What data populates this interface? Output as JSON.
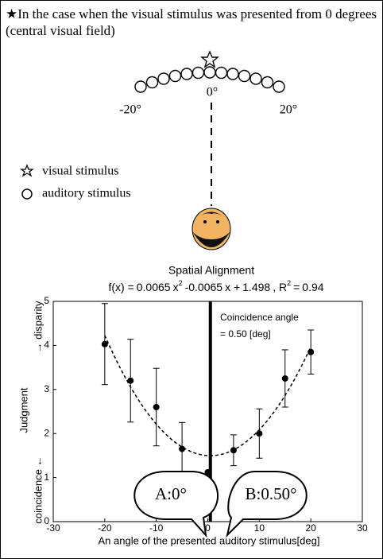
{
  "heading": "★In the case when the visual stimulus was presented from 0 degrees (central visual field)",
  "arc_labels": [
    "-20°",
    "0°",
    "20°"
  ],
  "legend_items": [
    "visual stimulus",
    "auditory stimulus"
  ],
  "chart_data": {
    "type": "scatter",
    "title": "Spatial Alignment",
    "formula": {
      "prefix": "f(x) =",
      "a": 0.0065,
      "a_var": "x",
      "a_exp": "2",
      "b": -0.0065,
      "b_var": "x +",
      "c": 1.498,
      "r_label": ", R",
      "r_exp": "2",
      "r_eq": "=",
      "r2": 0.94
    },
    "x": [
      -20,
      -15,
      -10,
      -5,
      0,
      5,
      10,
      15,
      20
    ],
    "values": [
      4.03,
      3.2,
      2.6,
      1.65,
      1.12,
      1.62,
      2.0,
      3.25,
      3.85
    ],
    "errors": [
      0.92,
      0.94,
      0.88,
      0.6,
      null,
      0.35,
      0.56,
      0.65,
      0.5
    ],
    "coincidence_line": 0.5,
    "annotation": [
      "Coincidence angle",
      "= 0.50 [deg]"
    ],
    "callouts": [
      "A:0°",
      "B:0.50°"
    ],
    "xlim": [
      -30,
      30
    ],
    "xticks": [
      -30,
      -20,
      -10,
      0,
      10,
      20,
      30
    ],
    "ylim": [
      0,
      5
    ],
    "yticks": [
      0,
      1,
      2,
      3,
      4,
      5
    ],
    "xlabel": "An angle of the presented auditory stimulus[deg]",
    "ylabel": "Judgment",
    "ylabel_low": "coincidence ←",
    "ylabel_high": "→ disparity",
    "color": "#000000"
  }
}
